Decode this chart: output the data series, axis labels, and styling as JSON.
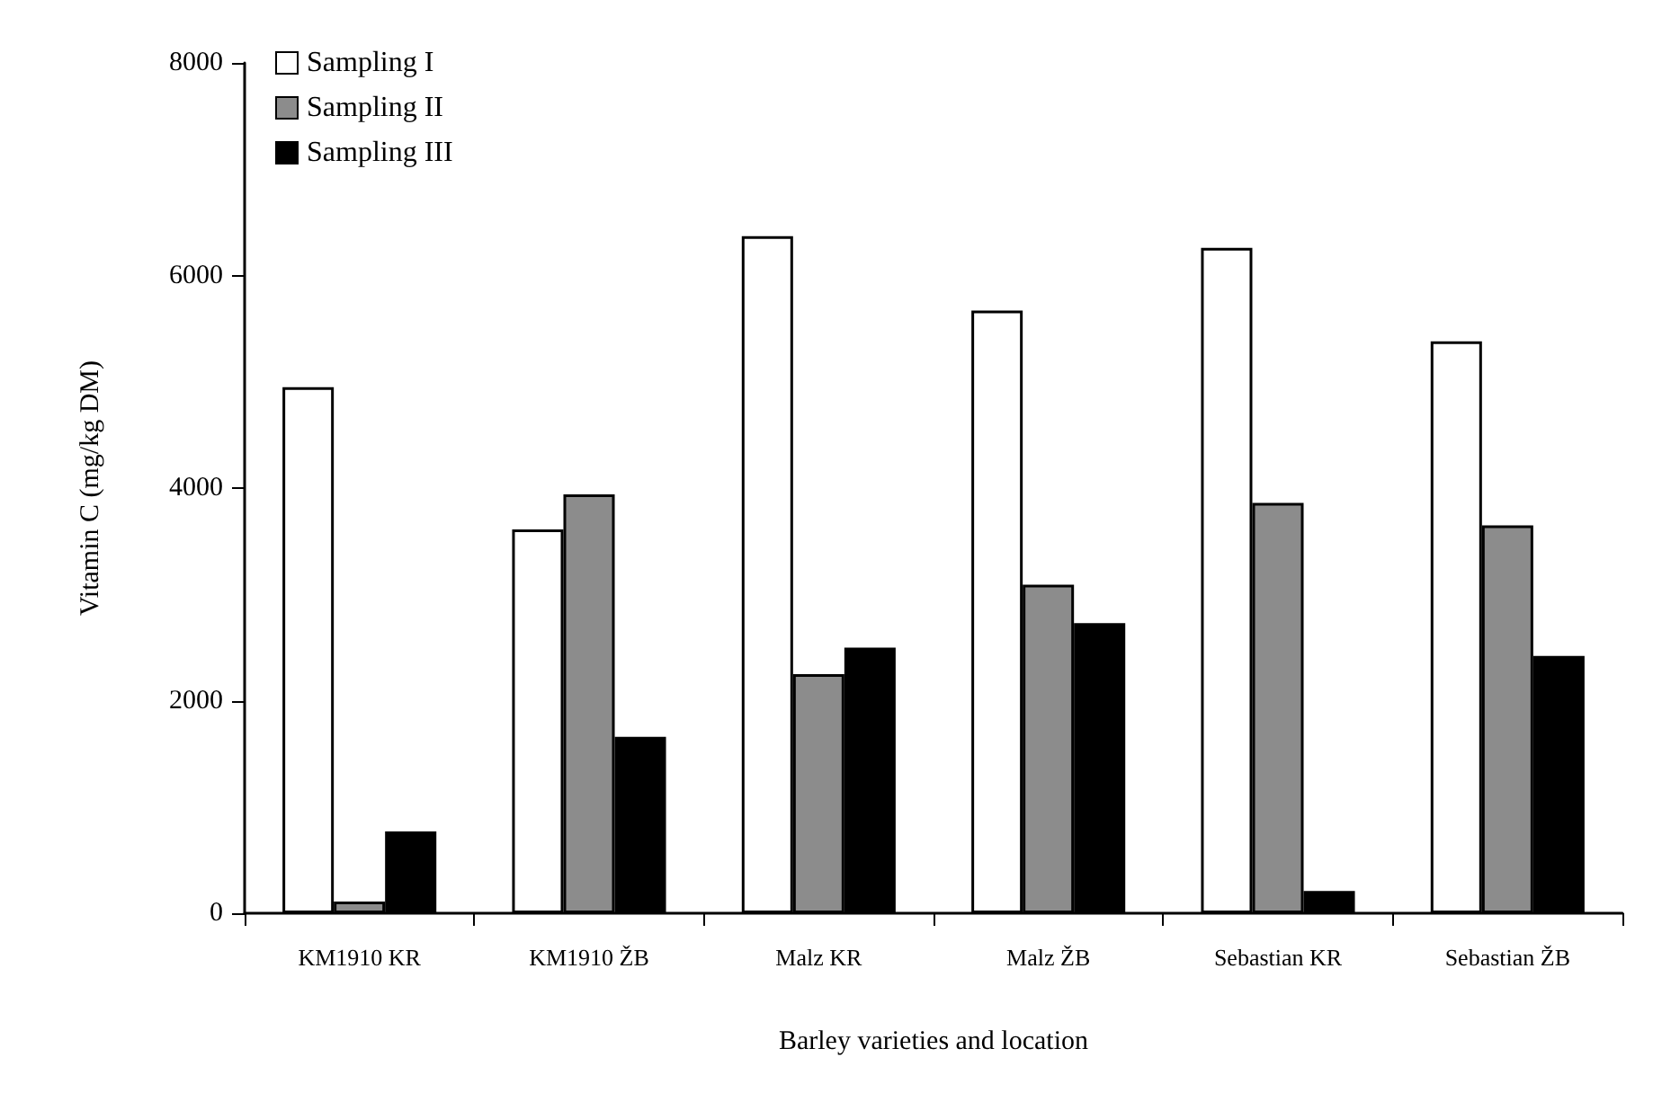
{
  "chart_data": {
    "type": "bar",
    "xlabel": "Barley varieties and location",
    "ylabel": "Vitamin C (mg/kg DM)",
    "categories": [
      "KM1910 KR",
      "KM1910 ŽB",
      "Malz KR",
      "Malz ŽB",
      "Sebastian KR",
      "Sebastian ŽB"
    ],
    "series": [
      {
        "name": "Sampling I",
        "color": "#ffffff",
        "values": [
          4950,
          3610,
          6370,
          5670,
          6260,
          5380
        ]
      },
      {
        "name": "Sampling II",
        "color": "#8c8c8c",
        "values": [
          110,
          3940,
          2250,
          3090,
          3860,
          3650
        ]
      },
      {
        "name": "Sampling III",
        "color": "#000000",
        "values": [
          770,
          1660,
          2500,
          2730,
          210,
          2420
        ]
      }
    ],
    "ylim": [
      0,
      8000
    ],
    "yticks": [
      0,
      2000,
      4000,
      6000,
      8000
    ],
    "grid": false,
    "legend": "top left"
  }
}
